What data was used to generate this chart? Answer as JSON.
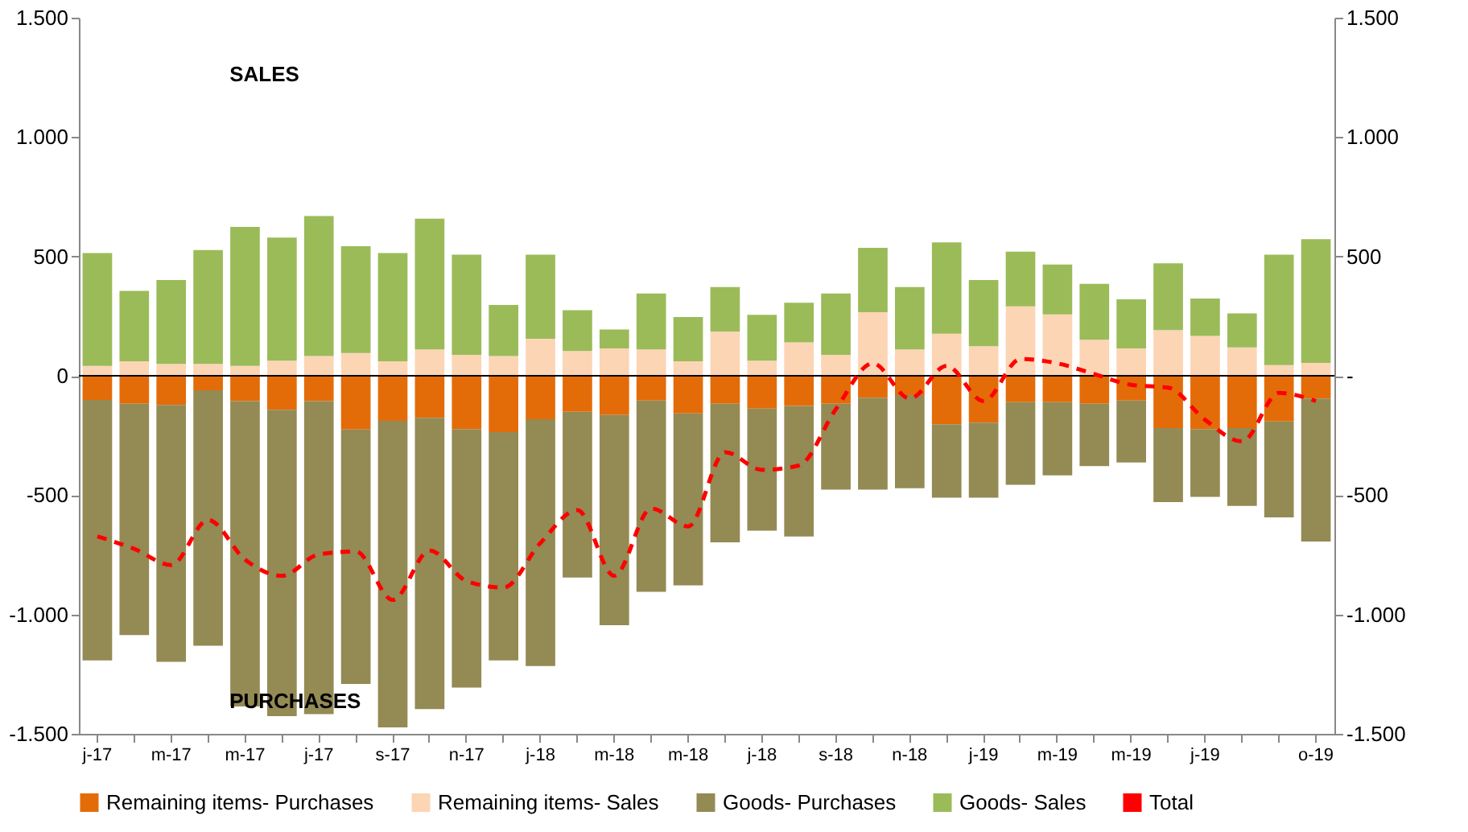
{
  "chart_data": {
    "type": "bar",
    "stacked": true,
    "categories": [
      "j-17",
      null,
      "m-17",
      null,
      "m-17",
      null,
      "j-17",
      null,
      "s-17",
      null,
      "n-17",
      null,
      "j-18",
      null,
      "m-18",
      null,
      "m-18",
      null,
      "j-18",
      null,
      "s-18",
      null,
      "n-18",
      null,
      "j-19",
      null,
      "m-19",
      null,
      "m-19",
      null,
      "j-19",
      null,
      null,
      "o-19"
    ],
    "series": [
      {
        "name": "Remaining items- Purchases",
        "color": "#e36c09",
        "values": [
          -101,
          -117,
          -122,
          -61,
          -106,
          -142,
          -106,
          -225,
          -189,
          -176,
          -223,
          -236,
          -182,
          -151,
          -164,
          -104,
          -158,
          -117,
          -137,
          -126,
          -117,
          -92,
          -81,
          -203,
          -196,
          -110,
          -110,
          -117,
          -104,
          -219,
          -223,
          -219,
          -191,
          -95
        ]
      },
      {
        "name": "Remaining items- Sales",
        "color": "#fcd5b5",
        "values": [
          41,
          61,
          50,
          50,
          41,
          63,
          83,
          95,
          61,
          110,
          88,
          83,
          155,
          104,
          115,
          110,
          61,
          185,
          63,
          140,
          88,
          266,
          110,
          176,
          124,
          291,
          257,
          151,
          115,
          191,
          167,
          119,
          45,
          54
        ]
      },
      {
        "name": "Goods- Purchases",
        "color": "#948a54",
        "values": [
          -1091,
          -969,
          -1076,
          -1070,
          -1279,
          -1284,
          -1311,
          -1066,
          -1284,
          -1220,
          -1083,
          -956,
          -1034,
          -694,
          -881,
          -801,
          -720,
          -581,
          -512,
          -547,
          -360,
          -385,
          -390,
          -308,
          -315,
          -347,
          -307,
          -261,
          -259,
          -310,
          -284,
          -326,
          -402,
          -599
        ]
      },
      {
        "name": "Goods- Sales",
        "color": "#9bbb59",
        "values": [
          473,
          295,
          351,
          477,
          583,
          516,
          586,
          448,
          453,
          548,
          419,
          214,
          352,
          171,
          79,
          235,
          185,
          187,
          192,
          166,
          257,
          270,
          262,
          383,
          277,
          229,
          209,
          234,
          205,
          280,
          157,
          142,
          462,
          518
        ]
      },
      {
        "name": "Total",
        "type": "line",
        "color": "#ff0000",
        "line_style": "dashed",
        "values": [
          -673,
          -725,
          -793,
          -604,
          -770,
          -838,
          -748,
          -736,
          -939,
          -732,
          -860,
          -887,
          -700,
          -563,
          -838,
          -556,
          -631,
          -320,
          -394,
          -376,
          -140,
          52,
          -95,
          41,
          -106,
          70,
          52,
          7,
          -38,
          -50,
          -185,
          -275,
          -72,
          -106
        ]
      }
    ],
    "ylim": [
      -1500,
      1500
    ],
    "yticks": [
      {
        "value": -1500,
        "label": "-1.500"
      },
      {
        "value": -1000,
        "label": "-1.000"
      },
      -500,
      0,
      500,
      {
        "value": 1000,
        "label": "1.000"
      },
      {
        "value": 1500,
        "label": "1.500"
      }
    ],
    "y2lim": [
      -1500,
      1500
    ],
    "y2ticks": [
      {
        "value": -1500,
        "label": "-1.500"
      },
      {
        "value": -1000,
        "label": "-1.000"
      },
      -500,
      {
        "value": 0,
        "label": "-"
      },
      500,
      {
        "value": 1000,
        "label": "1.000"
      },
      {
        "value": 1500,
        "label": "1.500"
      }
    ],
    "ref_lines": [
      {
        "axis": "y",
        "value": 0,
        "color": "#000000"
      }
    ],
    "annotations": [
      "SALES",
      "PURCHASES"
    ],
    "grid": false,
    "legend": "bottom"
  }
}
